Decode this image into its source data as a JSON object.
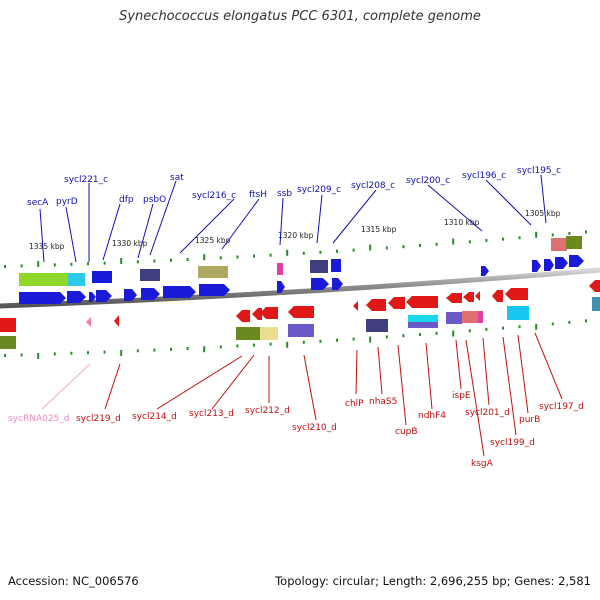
{
  "title": "Synechococcus elongatus PCC 6301, complete genome",
  "accession_text": "Accession: NC_006576",
  "topology_text": "Topology: circular; Length: 2,696,255 bp; Genes: 2,581",
  "colors": {
    "forward_gene": "#1a1ad8",
    "reverse_gene": "#e01818",
    "rna_gene": "#f07ab4",
    "tick": "#2a8a2a",
    "backbone": "#8c8c8c",
    "forward_label": "#1010b0",
    "reverse_label": "#c01010",
    "rna_label": "#e888c0"
  },
  "scale_labels": [
    "1335 kbp",
    "1330 kbp",
    "1325 kbp",
    "1320 kbp",
    "1315 kbp",
    "1310 kbp",
    "1305 kbp"
  ],
  "forward_labels": [
    "secA",
    "pyrD",
    "sycl221_c",
    "dfp",
    "psbO",
    "sat",
    "sycl216_c",
    "ftsH",
    "ssb",
    "sycl209_c",
    "sycl208_c",
    "sycl200_c",
    "sycl196_c",
    "sycl195_c"
  ],
  "reverse_labels": [
    "sycRNA025_d",
    "sycl219_d",
    "sycl214_d",
    "sycl213_d",
    "sycl212_d",
    "sycl210_d",
    "chlP",
    "nhaS5",
    "cupB",
    "ndhF4",
    "ispE",
    "ksgA",
    "sycl201_d",
    "sycl199_d",
    "purB",
    "sycl197_d"
  ]
}
